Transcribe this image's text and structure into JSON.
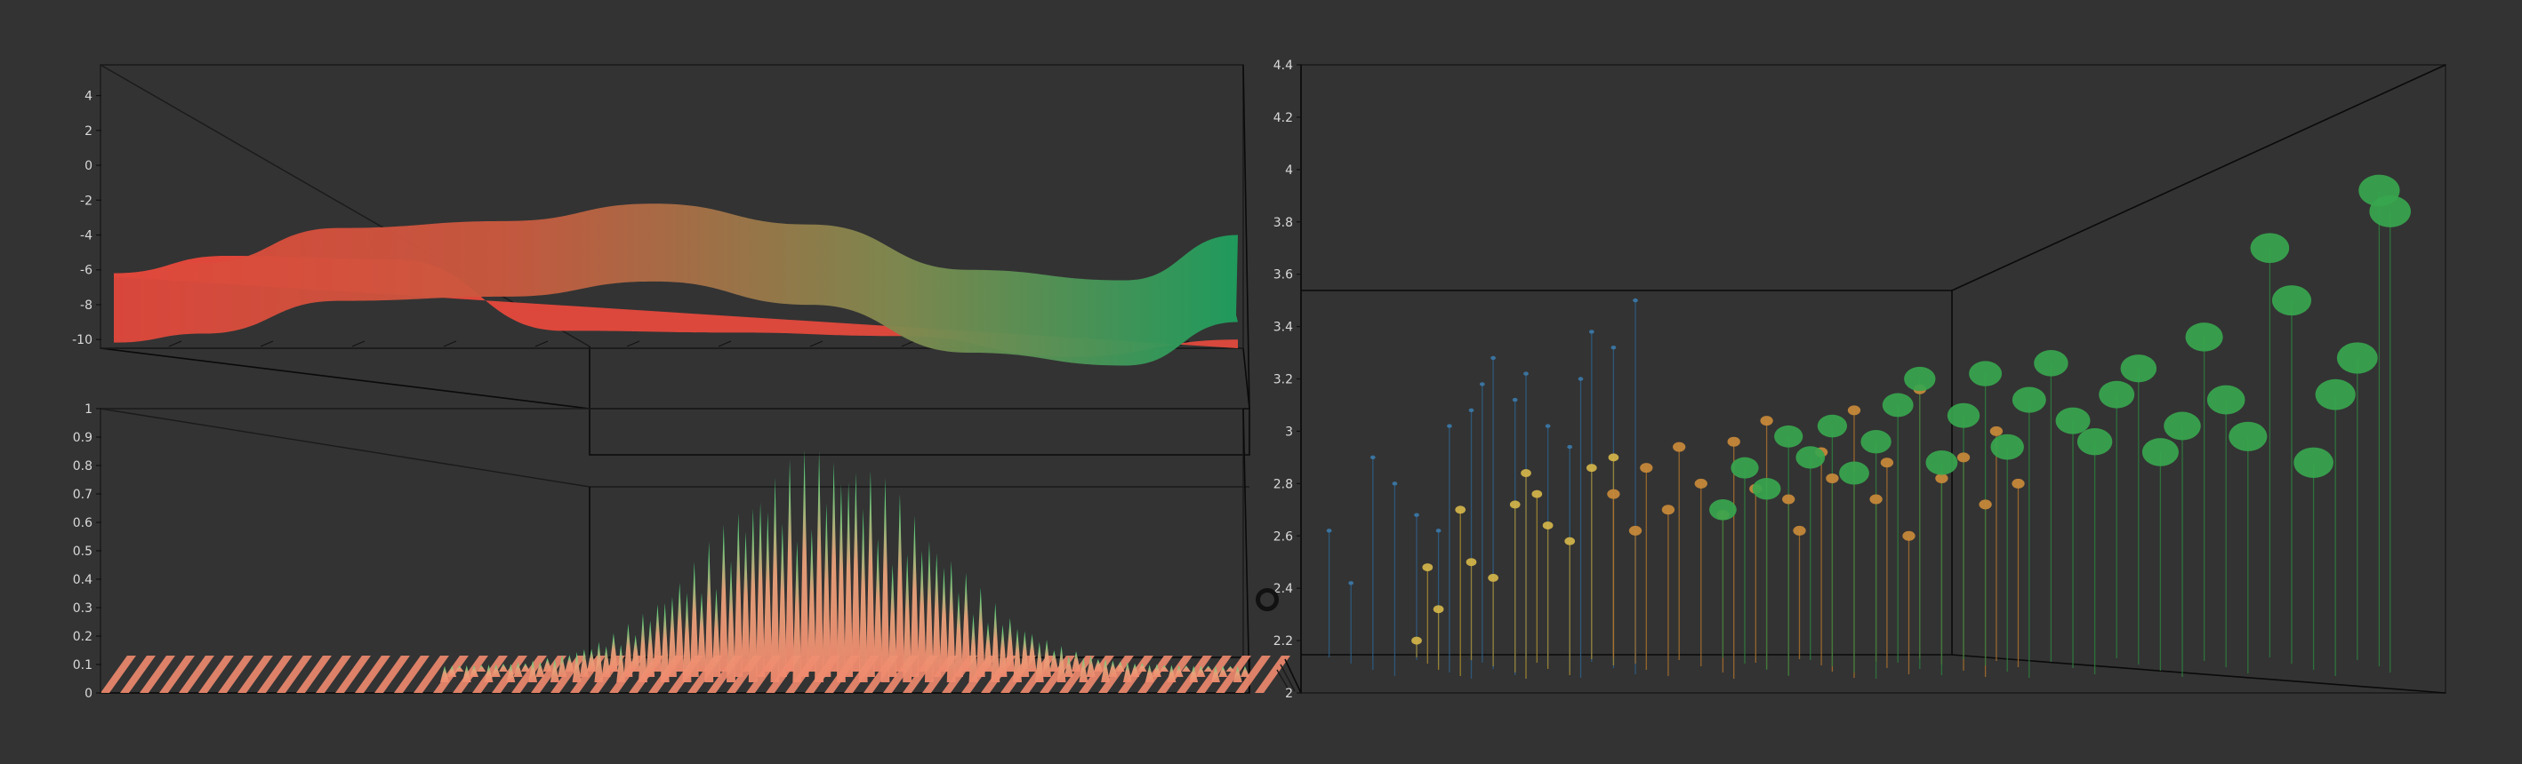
{
  "chart_data": [
    {
      "type": "surface3d",
      "name": "ribbon-surface",
      "z_ticks": [
        "4",
        "2",
        "0",
        "-2",
        "-4",
        "-6",
        "-8",
        "-10"
      ],
      "ylim": [
        -10.5,
        5
      ],
      "front_curve": {
        "x": [
          0,
          0.08,
          0.2,
          0.35,
          0.48,
          0.62,
          0.76,
          0.9,
          1.0
        ],
        "y": [
          -6.2,
          -5.6,
          -3.6,
          -3.2,
          -2.2,
          -3.4,
          -6.0,
          -6.6,
          -4.0
        ]
      },
      "back_curve": {
        "x": [
          0,
          0.1,
          0.25,
          0.4,
          0.55,
          0.7,
          0.85,
          1.0
        ],
        "y": [
          -6.2,
          -5.2,
          -5.4,
          -9.5,
          -9.6,
          -9.8,
          -11.0,
          -10.0
        ]
      },
      "colors": {
        "low": "#e0473b",
        "high": "#1f9e5e"
      }
    },
    {
      "type": "bar3d",
      "name": "spike-distribution",
      "z_ticks": [
        "1",
        "0.9",
        "0.8",
        "0.7",
        "0.6",
        "0.5",
        "0.4",
        "0.3",
        "0.2",
        "0.1",
        "0"
      ],
      "ylim": [
        0,
        1
      ],
      "peak": 0.8,
      "center": 0.66,
      "spread": 0.12,
      "colors": {
        "low": "#f08a6e",
        "high": "#3ee07e"
      }
    },
    {
      "type": "scatter3d",
      "name": "stem-scatter",
      "z_ticks": [
        "4.4",
        "4.2",
        "4",
        "3.8",
        "3.6",
        "3.4",
        "3.2",
        "3",
        "2.8",
        "2.6",
        "2.4",
        "2.2",
        "2"
      ],
      "ylim": [
        2,
        4.4
      ],
      "series": [
        {
          "name": "blue",
          "color": "#3b78a8",
          "stem": "#2e5f86",
          "points": [
            [
              0.02,
              2.62
            ],
            [
              0.04,
              2.42
            ],
            [
              0.06,
              2.9
            ],
            [
              0.08,
              2.8
            ],
            [
              0.1,
              2.68
            ],
            [
              0.12,
              2.62
            ],
            [
              0.13,
              3.02
            ],
            [
              0.15,
              3.08
            ],
            [
              0.16,
              3.18
            ],
            [
              0.17,
              3.28
            ],
            [
              0.19,
              3.12
            ],
            [
              0.2,
              3.22
            ],
            [
              0.22,
              3.02
            ],
            [
              0.24,
              2.94
            ],
            [
              0.25,
              3.2
            ],
            [
              0.26,
              3.38
            ],
            [
              0.28,
              3.32
            ],
            [
              0.3,
              3.5
            ]
          ]
        },
        {
          "name": "yellow",
          "color": "#d4b54a",
          "stem": "#a88a2e",
          "points": [
            [
              0.1,
              2.2
            ],
            [
              0.11,
              2.48
            ],
            [
              0.12,
              2.32
            ],
            [
              0.14,
              2.7
            ],
            [
              0.15,
              2.5
            ],
            [
              0.17,
              2.44
            ],
            [
              0.19,
              2.72
            ],
            [
              0.2,
              2.84
            ],
            [
              0.21,
              2.76
            ],
            [
              0.22,
              2.64
            ],
            [
              0.24,
              2.58
            ],
            [
              0.26,
              2.86
            ],
            [
              0.28,
              2.9
            ]
          ]
        },
        {
          "name": "orange",
          "color": "#c98a3a",
          "stem": "#a8702c",
          "points": [
            [
              0.28,
              2.76
            ],
            [
              0.3,
              2.62
            ],
            [
              0.31,
              2.86
            ],
            [
              0.33,
              2.7
            ],
            [
              0.34,
              2.94
            ],
            [
              0.36,
              2.8
            ],
            [
              0.38,
              2.68
            ],
            [
              0.39,
              2.96
            ],
            [
              0.41,
              2.78
            ],
            [
              0.42,
              3.04
            ],
            [
              0.44,
              2.74
            ],
            [
              0.45,
              2.62
            ],
            [
              0.47,
              2.92
            ],
            [
              0.48,
              2.82
            ],
            [
              0.5,
              3.08
            ],
            [
              0.52,
              2.74
            ],
            [
              0.53,
              2.88
            ],
            [
              0.55,
              2.6
            ],
            [
              0.56,
              3.16
            ],
            [
              0.58,
              2.82
            ],
            [
              0.6,
              2.9
            ],
            [
              0.62,
              2.72
            ],
            [
              0.63,
              3.0
            ],
            [
              0.65,
              2.8
            ]
          ]
        },
        {
          "name": "green",
          "color": "#37a64e",
          "stem": "#2e7d3e",
          "points": [
            [
              0.38,
              2.7
            ],
            [
              0.4,
              2.86
            ],
            [
              0.42,
              2.78
            ],
            [
              0.44,
              2.98
            ],
            [
              0.46,
              2.9
            ],
            [
              0.48,
              3.02
            ],
            [
              0.5,
              2.84
            ],
            [
              0.52,
              2.96
            ],
            [
              0.54,
              3.1
            ],
            [
              0.56,
              3.2
            ],
            [
              0.58,
              2.88
            ],
            [
              0.6,
              3.06
            ],
            [
              0.62,
              3.22
            ],
            [
              0.64,
              2.94
            ],
            [
              0.66,
              3.12
            ],
            [
              0.68,
              3.26
            ],
            [
              0.7,
              3.04
            ],
            [
              0.72,
              2.96
            ],
            [
              0.74,
              3.14
            ],
            [
              0.76,
              3.24
            ],
            [
              0.78,
              2.92
            ],
            [
              0.8,
              3.02
            ],
            [
              0.82,
              3.36
            ],
            [
              0.84,
              3.12
            ],
            [
              0.86,
              2.98
            ],
            [
              0.88,
              3.7
            ],
            [
              0.9,
              3.5
            ],
            [
              0.92,
              2.88
            ],
            [
              0.94,
              3.14
            ],
            [
              0.96,
              3.28
            ],
            [
              0.98,
              3.92
            ],
            [
              0.99,
              3.84
            ]
          ]
        }
      ]
    }
  ]
}
